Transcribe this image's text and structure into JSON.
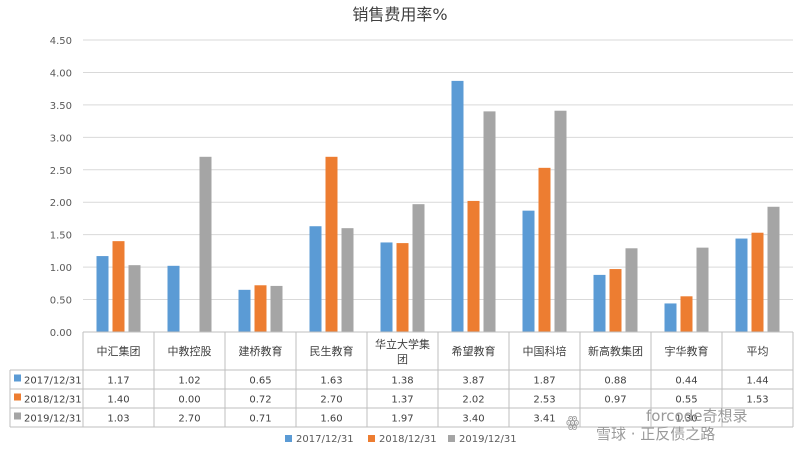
{
  "chart_data": {
    "type": "bar",
    "title": "销售费用率%",
    "categories": [
      "中汇集团",
      "中教控股",
      "建桥教育",
      "民生教育",
      "华立大学集团",
      "希望教育",
      "中国科培",
      "新高教集团",
      "宇华教育",
      "平均"
    ],
    "series": [
      {
        "name": "2017/12/31",
        "color": "#5b9bd5",
        "values": [
          1.17,
          1.02,
          0.65,
          1.63,
          1.38,
          3.87,
          1.87,
          0.88,
          0.44,
          1.44
        ],
        "labels": [
          "1.17",
          "1.02",
          "0.65",
          "1.63",
          "1.38",
          "3.87",
          "1.87",
          "0.88",
          "0.44",
          "1.44"
        ]
      },
      {
        "name": "2018/12/31",
        "color": "#ed7d31",
        "values": [
          1.4,
          0.0,
          0.72,
          2.7,
          1.37,
          2.02,
          2.53,
          0.97,
          0.55,
          1.53
        ],
        "labels": [
          "1.40",
          "0.00",
          "0.72",
          "2.70",
          "1.37",
          "2.02",
          "2.53",
          "0.97",
          "0.55",
          "1.53"
        ]
      },
      {
        "name": "2019/12/31",
        "color": "#a5a5a5",
        "values": [
          1.03,
          2.7,
          0.71,
          1.6,
          1.97,
          3.4,
          3.41,
          1.29,
          1.3,
          1.93
        ],
        "labels": [
          "1.03",
          "2.70",
          "0.71",
          "1.60",
          "1.97",
          "3.40",
          "3.41",
          "",
          "1.30",
          ""
        ]
      }
    ],
    "y_ticks": [
      "0.00",
      "0.50",
      "1.00",
      "1.50",
      "2.00",
      "2.50",
      "3.00",
      "3.50",
      "4.00",
      "4.50"
    ],
    "ylim": [
      0,
      4.5
    ],
    "grid": true,
    "legend": "bottom",
    "data_table": true
  },
  "watermark": {
    "line1": "forcode奇想录",
    "line2": "雪球 · 正反债之路"
  }
}
